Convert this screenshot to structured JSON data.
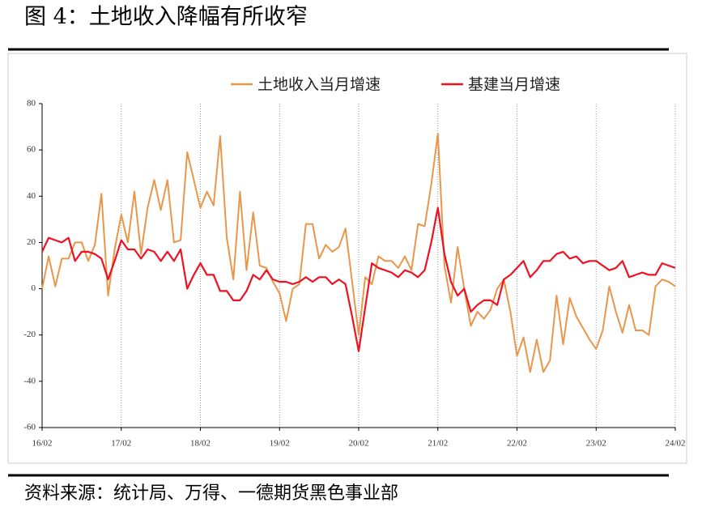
{
  "title": "图 4：土地收入降幅有所收窄",
  "source": "资料来源：统计局、万得、一德期货黑色事业部",
  "chart_data": {
    "type": "line",
    "categories": [
      "16/02",
      null,
      null,
      null,
      null,
      null,
      null,
      null,
      null,
      null,
      null,
      null,
      "17/02",
      null,
      null,
      null,
      null,
      null,
      null,
      null,
      null,
      null,
      null,
      null,
      "18/02",
      null,
      null,
      null,
      null,
      null,
      null,
      null,
      null,
      null,
      null,
      null,
      "19/02",
      null,
      null,
      null,
      null,
      null,
      null,
      null,
      null,
      null,
      null,
      null,
      "20/02",
      null,
      null,
      null,
      null,
      null,
      null,
      null,
      null,
      null,
      null,
      null,
      "21/02",
      null,
      null,
      null,
      null,
      null,
      null,
      null,
      null,
      null,
      null,
      null,
      "22/02",
      null,
      null,
      null,
      null,
      null,
      null,
      null,
      null,
      null,
      null,
      null,
      "23/02",
      null,
      null,
      null,
      null,
      null,
      null,
      null,
      null,
      null,
      null,
      null,
      "24/02"
    ],
    "series": [
      {
        "name": "土地收入当月增速",
        "color": "#e8974a",
        "values": [
          0,
          14,
          1,
          13,
          13,
          20,
          20,
          12,
          19,
          41,
          -3,
          17,
          32,
          20,
          42,
          15,
          35,
          47,
          34,
          47,
          20,
          21,
          59,
          47,
          35,
          42,
          36,
          66,
          22,
          4,
          42,
          8,
          33,
          10,
          9,
          3,
          -2,
          -14,
          0,
          2,
          28,
          28,
          13,
          19,
          16,
          18,
          26,
          3,
          -20,
          5,
          2,
          14,
          12,
          12,
          9,
          14,
          8,
          28,
          27,
          45,
          67,
          10,
          -6,
          18,
          0,
          -16,
          -10,
          -13,
          -9,
          0,
          4,
          -10,
          -29,
          -21,
          -36,
          -22,
          -36,
          -31,
          -3,
          -24,
          -4,
          -12,
          -17,
          -22,
          -26,
          -18,
          1,
          -10,
          -19,
          -7,
          -18,
          -18,
          -20,
          1,
          4,
          3,
          1
        ]
      },
      {
        "name": "基建当月增速",
        "color": "#ee1122",
        "values": [
          16,
          22,
          21,
          20,
          22,
          12,
          16,
          16,
          15,
          13,
          4,
          12,
          21,
          17,
          17,
          13,
          17,
          16,
          12,
          16,
          12,
          17,
          0,
          6,
          11,
          6,
          6,
          -1,
          -1,
          -5,
          -5,
          -1,
          6,
          4,
          8,
          4,
          3,
          3,
          2,
          3,
          5,
          3,
          5,
          5,
          2,
          4,
          2,
          -12,
          -27,
          -8,
          11,
          9,
          8,
          7,
          5,
          8,
          7,
          5,
          8,
          20,
          35,
          15,
          3,
          -3,
          0,
          -10,
          -7,
          -5,
          -5,
          -7,
          4,
          6,
          9,
          12,
          5,
          8,
          12,
          12,
          15,
          16,
          13,
          14,
          11,
          12,
          12,
          10,
          8,
          9,
          12,
          5,
          6,
          7,
          6,
          6,
          11,
          10,
          9
        ]
      }
    ],
    "ylim": [
      -60,
      80
    ],
    "yticks": [
      -60,
      -40,
      -20,
      0,
      20,
      40,
      60,
      80
    ],
    "xgrid": true
  }
}
